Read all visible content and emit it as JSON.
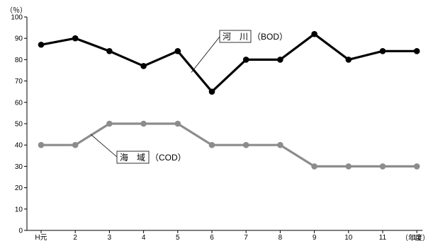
{
  "chart_data": {
    "type": "line",
    "title": "",
    "xlabel": "",
    "ylabel": "",
    "y_unit_label": "（％）",
    "x_unit_label": "（年度）",
    "categories": [
      "H元",
      "2",
      "3",
      "4",
      "5",
      "6",
      "7",
      "8",
      "9",
      "10",
      "11",
      "12"
    ],
    "yticks": [
      "0",
      "10",
      "20",
      "30",
      "40",
      "50",
      "60",
      "70",
      "80",
      "90",
      "100"
    ],
    "ylim": [
      0,
      100
    ],
    "grid": false,
    "series": [
      {
        "name": "河　川",
        "label_suffix": "（BOD）",
        "color": "#000000",
        "values": [
          87,
          90,
          84,
          77,
          84,
          65,
          80,
          80,
          92,
          80,
          84,
          84
        ]
      },
      {
        "name": "海　域",
        "label_suffix": "（COD）",
        "color": "#8c8c8c",
        "values": [
          40,
          40,
          50,
          50,
          50,
          40,
          40,
          40,
          30,
          30,
          30,
          30
        ]
      }
    ]
  }
}
